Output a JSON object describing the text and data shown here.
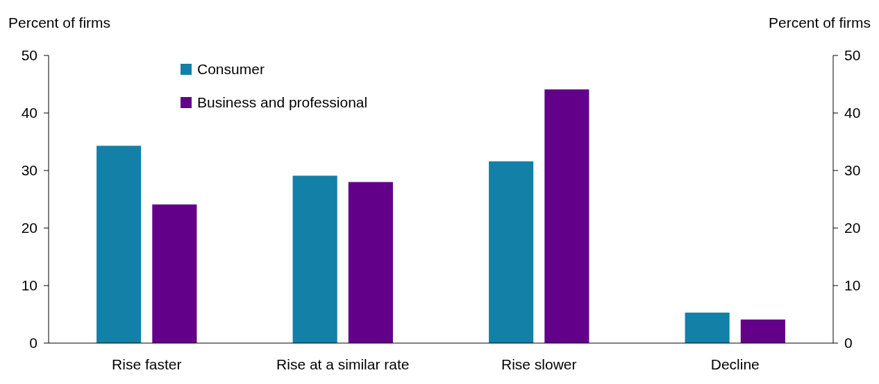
{
  "chart_data": {
    "type": "bar",
    "categories": [
      "Rise faster",
      "Rise at a similar rate",
      "Rise slower",
      "Decline"
    ],
    "series": [
      {
        "name": "Consumer",
        "color": "#1380a8",
        "values": [
          34.3,
          29.1,
          31.6,
          5.3
        ]
      },
      {
        "name": "Business and professional",
        "color": "#62008a",
        "values": [
          24.1,
          28.0,
          44.1,
          4.1
        ]
      }
    ],
    "ylabel": "Percent of firms",
    "y2label": "Percent of firms",
    "ylim": [
      0,
      50
    ],
    "yticks": [
      0,
      10,
      20,
      30,
      40,
      50
    ],
    "y2lim": [
      0,
      50
    ],
    "y2ticks": [
      0,
      10,
      20,
      30,
      40,
      50
    ],
    "legend": "top left"
  }
}
